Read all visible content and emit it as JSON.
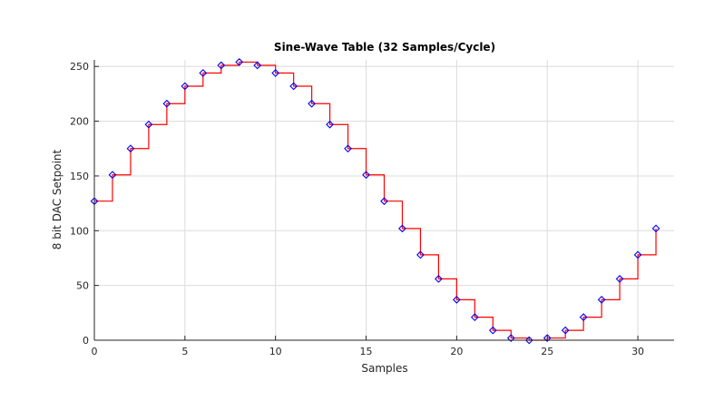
{
  "chart_data": {
    "type": "line",
    "title": "Sine-Wave Table (32 Samples/Cycle)",
    "xlabel": "Samples",
    "ylabel": "8 bit DAC Setpoint",
    "xlim": [
      0,
      32
    ],
    "ylim": [
      0,
      256
    ],
    "xticks": [
      0,
      5,
      10,
      15,
      20,
      25,
      30
    ],
    "yticks": [
      0,
      50,
      100,
      150,
      200,
      250
    ],
    "grid": true,
    "x": [
      0,
      1,
      2,
      3,
      4,
      5,
      6,
      7,
      8,
      9,
      10,
      11,
      12,
      13,
      14,
      15,
      16,
      17,
      18,
      19,
      20,
      21,
      22,
      23,
      24,
      25,
      26,
      27,
      28,
      29,
      30,
      31
    ],
    "series": [
      {
        "style": "stairs",
        "color": "#ff0000",
        "values": [
          127,
          151,
          175,
          197,
          216,
          232,
          244,
          251,
          254,
          251,
          244,
          232,
          216,
          197,
          175,
          151,
          127,
          102,
          78,
          56,
          37,
          21,
          9,
          2,
          0,
          2,
          9,
          21,
          37,
          56,
          78,
          102
        ]
      },
      {
        "style": "markers",
        "marker": "diamond",
        "color": "#0000ff",
        "values": [
          127,
          151,
          175,
          197,
          216,
          232,
          244,
          251,
          254,
          251,
          244,
          232,
          216,
          197,
          175,
          151,
          127,
          102,
          78,
          56,
          37,
          21,
          9,
          2,
          0,
          2,
          9,
          21,
          37,
          56,
          78,
          102
        ]
      }
    ],
    "colors": {
      "axis": "#262626",
      "grid": "#dcdcdc",
      "stairs": "#ff0000",
      "markers": "#0000ff",
      "background": "#ffffff"
    }
  }
}
